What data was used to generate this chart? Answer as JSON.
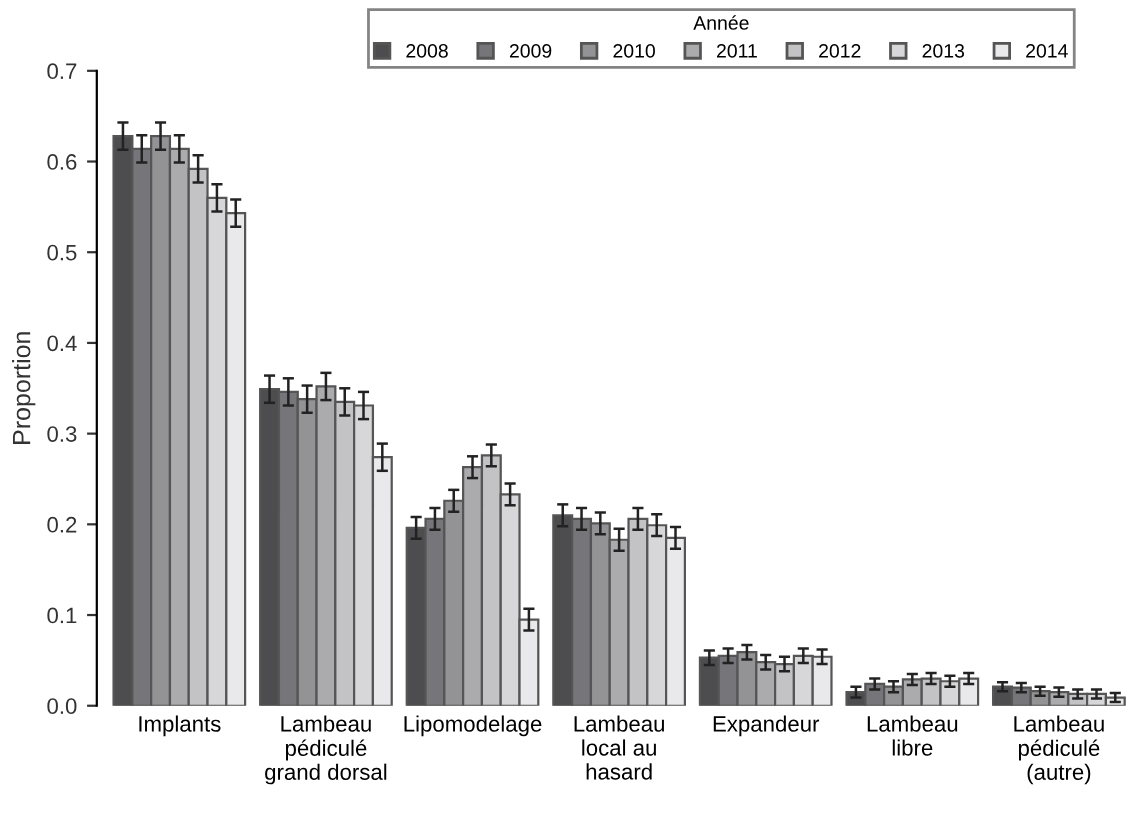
{
  "chart_data": {
    "type": "bar",
    "ylabel": "Proportion",
    "legend_title": "Année",
    "legend": "top",
    "grid": false,
    "categories": [
      "Implants",
      "Lambeau\npédiculé\ngrand dorsal",
      "Lipomodelage",
      "Lambeau\nlocal au\nhasard",
      "Expandeur",
      "Lambeau\nlibre",
      "Lambeau\npédiculé\n(autre)"
    ],
    "ylim": [
      0,
      0.7
    ],
    "yticks": [
      {
        "value": 0,
        "label": "0.0"
      },
      0.1,
      0.2,
      0.3,
      0.4,
      0.5,
      0.6,
      0.7
    ],
    "series": [
      {
        "name": "2008",
        "color": "#4d4d4f",
        "values": [
          0.628,
          0.349,
          0.196,
          0.21,
          0.053,
          0.015,
          0.021
        ],
        "errors": [
          0.015,
          0.015,
          0.012,
          0.012,
          0.008,
          0.006,
          0.005
        ]
      },
      {
        "name": "2009",
        "color": "#76767a",
        "values": [
          0.614,
          0.346,
          0.206,
          0.206,
          0.055,
          0.024,
          0.02
        ],
        "errors": [
          0.015,
          0.015,
          0.012,
          0.012,
          0.008,
          0.006,
          0.005
        ]
      },
      {
        "name": "2010",
        "color": "#939396",
        "values": [
          0.628,
          0.338,
          0.226,
          0.201,
          0.059,
          0.021,
          0.016
        ],
        "errors": [
          0.015,
          0.015,
          0.012,
          0.012,
          0.008,
          0.006,
          0.005
        ]
      },
      {
        "name": "2011",
        "color": "#ababae",
        "values": [
          0.614,
          0.352,
          0.263,
          0.183,
          0.048,
          0.029,
          0.015
        ],
        "errors": [
          0.015,
          0.015,
          0.012,
          0.012,
          0.008,
          0.006,
          0.005
        ]
      },
      {
        "name": "2012",
        "color": "#c3c3c5",
        "values": [
          0.592,
          0.335,
          0.276,
          0.206,
          0.046,
          0.03,
          0.013
        ],
        "errors": [
          0.015,
          0.015,
          0.012,
          0.012,
          0.008,
          0.006,
          0.005
        ]
      },
      {
        "name": "2013",
        "color": "#d7d7d9",
        "values": [
          0.56,
          0.331,
          0.233,
          0.199,
          0.055,
          0.027,
          0.013
        ],
        "errors": [
          0.015,
          0.015,
          0.012,
          0.012,
          0.008,
          0.006,
          0.005
        ]
      },
      {
        "name": "2014",
        "color": "#e9e9eb",
        "values": [
          0.543,
          0.274,
          0.095,
          0.185,
          0.054,
          0.03,
          0.009
        ],
        "errors": [
          0.015,
          0.015,
          0.012,
          0.012,
          0.008,
          0.006,
          0.005
        ]
      }
    ]
  }
}
